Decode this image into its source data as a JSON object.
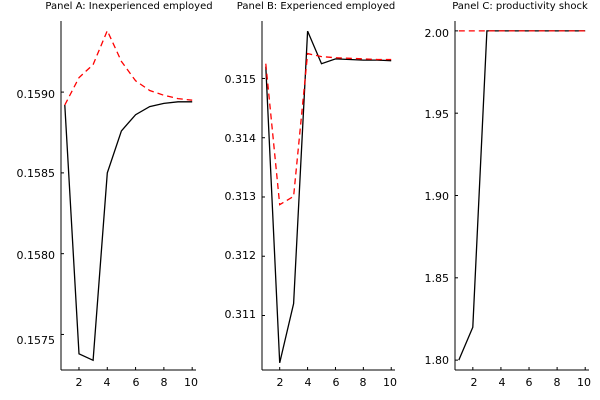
{
  "chart_data": [
    {
      "type": "line",
      "title": "Panel A: Inexperienced employed",
      "xlabel": "",
      "ylabel": "",
      "x": [
        1,
        2,
        3,
        4,
        5,
        6,
        7,
        8,
        9,
        10
      ],
      "series": [
        {
          "style": "solid",
          "color": "#000000",
          "values": [
            0.15892,
            0.15738,
            0.15734,
            0.1585,
            0.15876,
            0.15886,
            0.15891,
            0.15893,
            0.15894,
            0.15894
          ]
        },
        {
          "style": "dashed",
          "color": "#ff0000",
          "values": [
            0.15892,
            0.15909,
            0.15917,
            0.15938,
            0.15919,
            0.15907,
            0.15901,
            0.15898,
            0.15896,
            0.15895
          ]
        }
      ],
      "xlim": [
        0.73,
        10.27
      ],
      "ylim": [
        0.15728,
        0.15944
      ],
      "xticks": [
        2,
        4,
        6,
        8,
        10
      ],
      "xtick_labels": [
        "2",
        "4",
        "6",
        "8",
        "10"
      ],
      "yticks": [
        0.1575,
        0.158,
        0.1585,
        0.159
      ],
      "ytick_labels": [
        "0.1575",
        "0.1580",
        "0.1585",
        "0.1590"
      ],
      "grid": false,
      "legend": "none"
    },
    {
      "type": "line",
      "title": "Panel B: Experienced employed",
      "xlabel": "",
      "ylabel": "",
      "x": [
        1,
        2,
        3,
        4,
        5,
        6,
        7,
        8,
        9,
        10
      ],
      "series": [
        {
          "style": "solid",
          "color": "#000000",
          "values": [
            0.3152,
            0.3102,
            0.3112,
            0.3158,
            0.31525,
            0.31533,
            0.31532,
            0.31531,
            0.31531,
            0.3153
          ]
        },
        {
          "style": "dashed",
          "color": "#ff0000",
          "values": [
            0.31525,
            0.31287,
            0.31301,
            0.31542,
            0.31537,
            0.31535,
            0.31534,
            0.31533,
            0.31532,
            0.31532
          ]
        }
      ],
      "xlim": [
        0.73,
        10.27
      ],
      "ylim": [
        0.31008,
        0.31597
      ],
      "xticks": [
        2,
        4,
        6,
        8,
        10
      ],
      "xtick_labels": [
        "2",
        "4",
        "6",
        "8",
        "10"
      ],
      "yticks": [
        0.311,
        0.312,
        0.313,
        0.314,
        0.315
      ],
      "ytick_labels": [
        "0.311",
        "0.312",
        "0.313",
        "0.314",
        "0.315"
      ],
      "grid": false,
      "legend": "none"
    },
    {
      "type": "line",
      "title": "Panel C: productivity shock",
      "xlabel": "",
      "ylabel": "",
      "x": [
        1,
        2,
        3,
        4,
        5,
        6,
        7,
        8,
        9,
        10
      ],
      "series": [
        {
          "style": "solid",
          "color": "#000000",
          "values": [
            1.8,
            1.82,
            2.0,
            2.0,
            2.0,
            2.0,
            2.0,
            2.0,
            2.0,
            2.0
          ]
        },
        {
          "style": "dashed",
          "color": "#ff0000",
          "values": [
            2.0,
            2.0,
            2.0,
            2.0,
            2.0,
            2.0,
            2.0,
            2.0,
            2.0,
            2.0
          ]
        }
      ],
      "xlim": [
        0.73,
        10.27
      ],
      "ylim": [
        1.794,
        2.006
      ],
      "xticks": [
        2,
        4,
        6,
        8,
        10
      ],
      "xtick_labels": [
        "2",
        "4",
        "6",
        "8",
        "10"
      ],
      "yticks": [
        1.8,
        1.85,
        1.9,
        1.95,
        2.0
      ],
      "ytick_labels": [
        "1.80",
        "1.85",
        "1.90",
        "1.95",
        "2.00"
      ],
      "grid": false,
      "legend": "none"
    }
  ]
}
